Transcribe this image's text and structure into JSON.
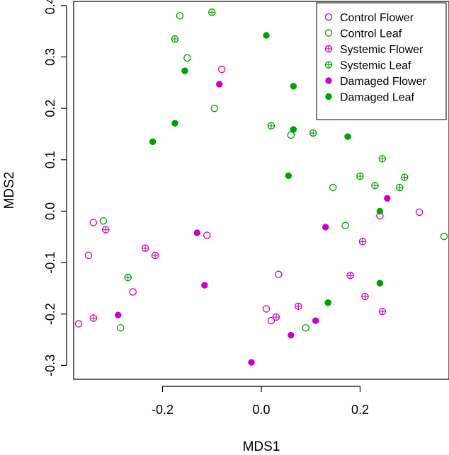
{
  "chart_data": {
    "type": "scatter",
    "title": "",
    "xlabel": "MDS1",
    "ylabel": "MDS2",
    "xlim": [
      -0.38,
      0.38
    ],
    "ylim": [
      -0.327,
      0.408
    ],
    "x_ticks": [
      -0.2,
      0.0,
      0.2
    ],
    "y_ticks": [
      -0.3,
      -0.2,
      -0.1,
      0.0,
      0.1,
      0.2,
      0.3,
      0.4
    ],
    "x_tick_labels": [
      "-0.2",
      "0.0",
      "0.2"
    ],
    "y_tick_labels": [
      "-0.3",
      "-0.2",
      "-0.1",
      "0.0",
      "0.1",
      "0.2",
      "0.3",
      "0.4"
    ],
    "grid": false,
    "legend_position": "top-right",
    "series": [
      {
        "name": "Control Flower",
        "marker": "open-circle",
        "color": "#cc00cc",
        "points": [
          [
            -0.08,
            0.276
          ],
          [
            -0.35,
            -0.086
          ],
          [
            -0.34,
            -0.022
          ],
          [
            -0.37,
            -0.219
          ],
          [
            -0.26,
            -0.157
          ],
          [
            -0.11,
            -0.047
          ],
          [
            0.035,
            -0.123
          ],
          [
            0.01,
            -0.19
          ],
          [
            0.02,
            -0.213
          ],
          [
            0.32,
            -0.002
          ],
          [
            0.24,
            -0.009
          ]
        ]
      },
      {
        "name": "Control Leaf",
        "marker": "open-circle",
        "color": "#00a000",
        "points": [
          [
            -0.165,
            0.38
          ],
          [
            -0.15,
            0.298
          ],
          [
            -0.095,
            0.2
          ],
          [
            0.06,
            0.148
          ],
          [
            0.145,
            0.046
          ],
          [
            0.17,
            -0.028
          ],
          [
            0.37,
            -0.049
          ],
          [
            -0.32,
            -0.019
          ],
          [
            -0.285,
            -0.227
          ],
          [
            0.09,
            -0.227
          ]
        ]
      },
      {
        "name": "Systemic Flower",
        "marker": "crossed-circle",
        "color": "#cc00cc",
        "points": [
          [
            -0.315,
            -0.036
          ],
          [
            -0.235,
            -0.072
          ],
          [
            -0.215,
            -0.086
          ],
          [
            -0.34,
            -0.208
          ],
          [
            0.03,
            -0.206
          ],
          [
            0.075,
            -0.185
          ],
          [
            0.18,
            -0.125
          ],
          [
            0.205,
            -0.059
          ],
          [
            0.21,
            -0.166
          ],
          [
            0.245,
            -0.195
          ]
        ]
      },
      {
        "name": "Systemic Leaf",
        "marker": "crossed-circle",
        "color": "#00a000",
        "points": [
          [
            -0.1,
            0.387
          ],
          [
            -0.175,
            0.335
          ],
          [
            0.02,
            0.166
          ],
          [
            0.105,
            0.152
          ],
          [
            0.2,
            0.068
          ],
          [
            0.245,
            0.102
          ],
          [
            0.29,
            0.066
          ],
          [
            0.23,
            0.05
          ],
          [
            0.28,
            0.046
          ],
          [
            -0.27,
            -0.129
          ]
        ]
      },
      {
        "name": "Damaged Flower",
        "marker": "filled-circle",
        "color": "#cc00cc",
        "points": [
          [
            -0.085,
            0.247
          ],
          [
            -0.13,
            -0.042
          ],
          [
            -0.115,
            -0.144
          ],
          [
            -0.29,
            -0.202
          ],
          [
            0.13,
            -0.031
          ],
          [
            0.255,
            0.025
          ],
          [
            0.11,
            -0.213
          ],
          [
            0.06,
            -0.241
          ],
          [
            -0.02,
            -0.294
          ]
        ]
      },
      {
        "name": "Damaged Leaf",
        "marker": "filled-circle",
        "color": "#00a000",
        "points": [
          [
            0.01,
            0.342
          ],
          [
            -0.155,
            0.273
          ],
          [
            0.065,
            0.243
          ],
          [
            -0.175,
            0.171
          ],
          [
            -0.22,
            0.135
          ],
          [
            0.065,
            0.159
          ],
          [
            0.175,
            0.145
          ],
          [
            0.055,
            0.069
          ],
          [
            0.24,
            0.0
          ],
          [
            0.24,
            -0.14
          ],
          [
            0.135,
            -0.178
          ]
        ]
      }
    ]
  }
}
